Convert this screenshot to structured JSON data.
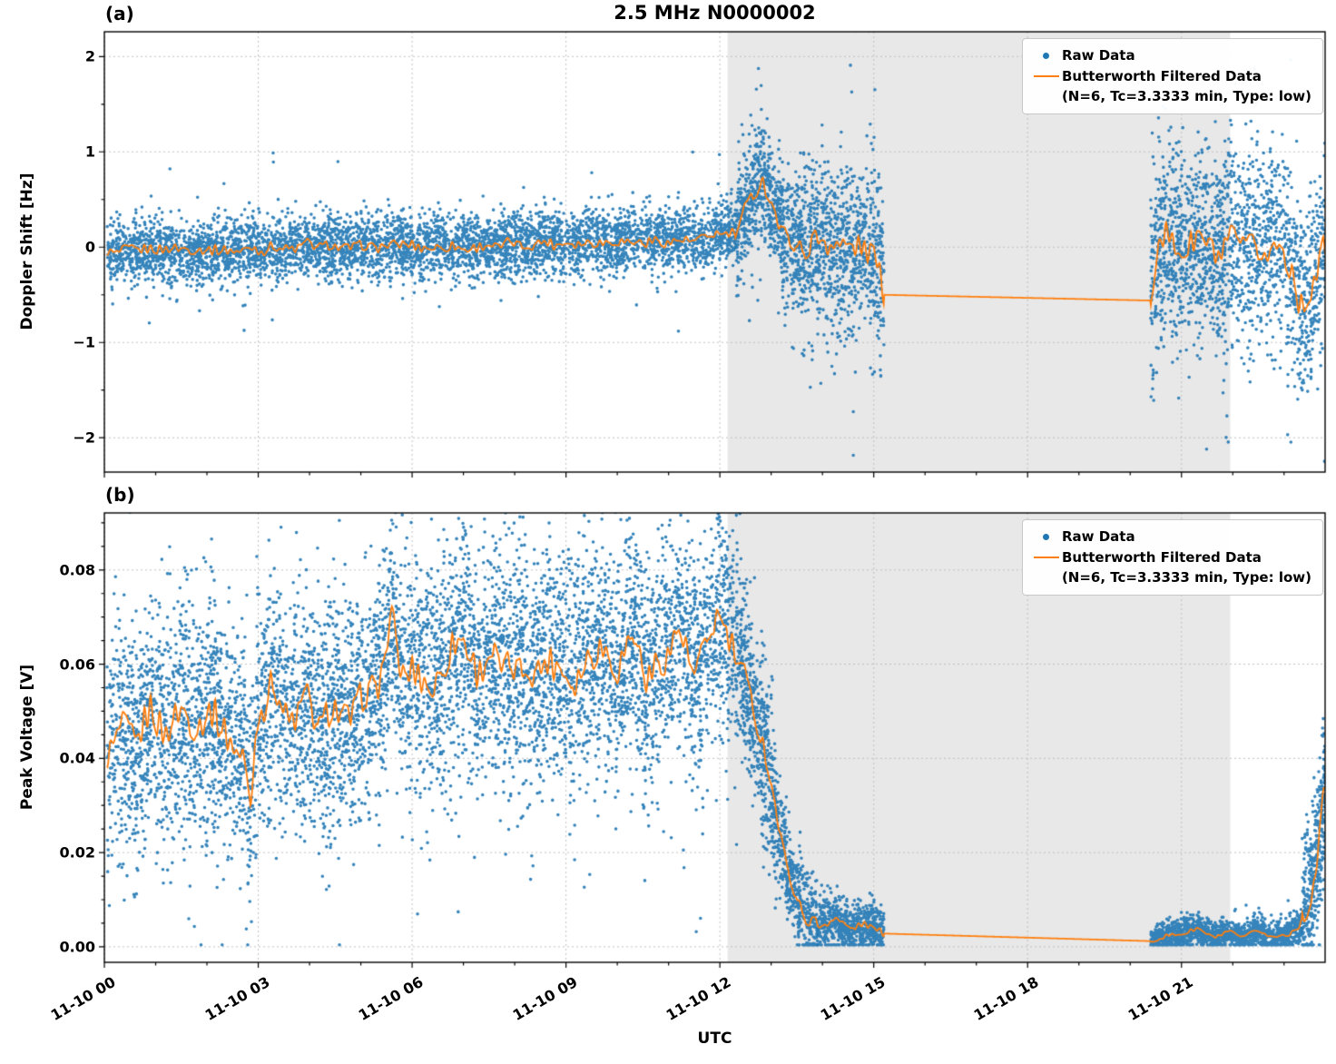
{
  "title": "2.5 MHz N0000002",
  "xlabel": "UTC",
  "colors": {
    "raw": "#1f77b4",
    "filtered": "#ff7f0e",
    "shade": "#e8e8e8",
    "grid": "#c0c0c0",
    "frame": "#000000"
  },
  "chart_data": [
    {
      "panel": "(a)",
      "type": "scatter",
      "ylabel": "Doppler Shift [Hz]",
      "xlim": [
        0,
        23.8
      ],
      "ylim": [
        -2.36,
        2.26
      ],
      "xticks": [
        0,
        3,
        6,
        9,
        12,
        15,
        18,
        21
      ],
      "yticks": [
        -2,
        -1,
        0,
        1,
        2
      ],
      "ytick_labels": [
        "−2",
        "−1",
        "0",
        "1",
        "2"
      ],
      "x_minor_step": 1,
      "y_minor_step": 0.5,
      "shade_span": [
        12.15,
        21.95
      ],
      "gap_span": [
        15.2,
        20.4
      ],
      "grid": true,
      "legend": {
        "raw_label": "Raw Data",
        "filtered_label": "Butterworth Filtered Data",
        "filtered_sublabel": "(N=6, Tc=3.3333 min, Type: low)"
      },
      "line_jitter_scale": 0.5,
      "filtered_anchors": [
        [
          0.05,
          -0.05
        ],
        [
          1,
          -0.03
        ],
        [
          2,
          -0.05
        ],
        [
          3,
          -0.02
        ],
        [
          4,
          0.02
        ],
        [
          5,
          0.0
        ],
        [
          6,
          0.03
        ],
        [
          7,
          0.0
        ],
        [
          8,
          0.03
        ],
        [
          9,
          0.05
        ],
        [
          10,
          0.05
        ],
        [
          11,
          0.07
        ],
        [
          11.8,
          0.1
        ],
        [
          12.3,
          0.18
        ],
        [
          12.6,
          0.5
        ],
        [
          12.8,
          0.72
        ],
        [
          13.0,
          0.45
        ],
        [
          13.2,
          0.15
        ],
        [
          13.5,
          0.0
        ],
        [
          14.0,
          0.05
        ],
        [
          14.5,
          -0.05
        ],
        [
          15.0,
          0.0
        ],
        [
          15.2,
          -0.5
        ],
        [
          20.4,
          -0.56
        ],
        [
          20.55,
          0.1
        ],
        [
          20.9,
          -0.05
        ],
        [
          21.3,
          0.08
        ],
        [
          21.7,
          -0.08
        ],
        [
          22.1,
          0.05
        ],
        [
          22.5,
          -0.05
        ],
        [
          22.9,
          0.02
        ],
        [
          23.15,
          -0.2
        ],
        [
          23.35,
          -0.65
        ],
        [
          23.55,
          -0.35
        ],
        [
          23.8,
          -0.05
        ]
      ],
      "raw_bands": [
        {
          "t0": 0.05,
          "t1": 12.3,
          "n": 5000,
          "sigma": 0.17,
          "outlier_p": 0.03,
          "outlier_mult": 2.2
        },
        {
          "t0": 12.3,
          "t1": 13.6,
          "n": 800,
          "sigma": 0.32,
          "outlier_p": 0.05,
          "outlier_mult": 2.0
        },
        {
          "t0": 13.6,
          "t1": 15.2,
          "n": 900,
          "sigma": 0.42,
          "outlier_p": 0.1,
          "outlier_mult": 2.0
        },
        {
          "t0": 20.4,
          "t1": 23.8,
          "n": 1800,
          "sigma": 0.5,
          "outlier_p": 0.08,
          "outlier_mult": 2.0
        }
      ]
    },
    {
      "panel": "(b)",
      "type": "scatter",
      "ylabel": "Peak Voltage [V]",
      "xlim": [
        0,
        23.8
      ],
      "ylim": [
        -0.0033,
        0.0921
      ],
      "xticks": [
        0,
        3,
        6,
        9,
        12,
        15,
        18,
        21
      ],
      "xtick_labels": [
        "11-10 00",
        "11-10 03",
        "11-10 06",
        "11-10 09",
        "11-10 12",
        "11-10 15",
        "11-10 18",
        "11-10 21"
      ],
      "yticks": [
        0,
        0.02,
        0.04,
        0.06,
        0.08
      ],
      "ytick_labels": [
        "0.00",
        "0.02",
        "0.04",
        "0.06",
        "0.08"
      ],
      "x_minor_step": 1,
      "y_minor_step": 0.005,
      "shade_span": [
        12.15,
        21.95
      ],
      "gap_span": [
        15.2,
        20.4
      ],
      "grid": true,
      "value_floor": 0.0004,
      "legend": {
        "raw_label": "Raw Data",
        "filtered_label": "Butterworth Filtered Data",
        "filtered_sublabel": "(N=6, Tc=3.3333 min, Type: low)"
      },
      "line_jitter_scale": 0.45,
      "filtered_anchors": [
        [
          0.05,
          0.04
        ],
        [
          0.3,
          0.047
        ],
        [
          0.6,
          0.042
        ],
        [
          0.9,
          0.05
        ],
        [
          1.2,
          0.044
        ],
        [
          1.5,
          0.049
        ],
        [
          1.8,
          0.045
        ],
        [
          2.1,
          0.049
        ],
        [
          2.4,
          0.044
        ],
        [
          2.7,
          0.041
        ],
        [
          2.85,
          0.029
        ],
        [
          3.0,
          0.051
        ],
        [
          3.3,
          0.055
        ],
        [
          3.6,
          0.049
        ],
        [
          3.9,
          0.052
        ],
        [
          4.2,
          0.047
        ],
        [
          4.5,
          0.051
        ],
        [
          4.8,
          0.049
        ],
        [
          5.1,
          0.053
        ],
        [
          5.4,
          0.058
        ],
        [
          5.6,
          0.07
        ],
        [
          5.8,
          0.057
        ],
        [
          6.1,
          0.06
        ],
        [
          6.4,
          0.056
        ],
        [
          6.7,
          0.062
        ],
        [
          7.0,
          0.067
        ],
        [
          7.3,
          0.058
        ],
        [
          7.6,
          0.063
        ],
        [
          7.9,
          0.057
        ],
        [
          8.2,
          0.061
        ],
        [
          8.5,
          0.058
        ],
        [
          8.8,
          0.062
        ],
        [
          9.1,
          0.056
        ],
        [
          9.4,
          0.061
        ],
        [
          9.7,
          0.064
        ],
        [
          10.0,
          0.058
        ],
        [
          10.3,
          0.067
        ],
        [
          10.6,
          0.057
        ],
        [
          10.9,
          0.062
        ],
        [
          11.2,
          0.068
        ],
        [
          11.5,
          0.059
        ],
        [
          11.8,
          0.065
        ],
        [
          12.0,
          0.07
        ],
        [
          12.2,
          0.066
        ],
        [
          12.45,
          0.059
        ],
        [
          12.7,
          0.049
        ],
        [
          12.9,
          0.04
        ],
        [
          13.1,
          0.028
        ],
        [
          13.3,
          0.017
        ],
        [
          13.5,
          0.01
        ],
        [
          13.7,
          0.006
        ],
        [
          13.95,
          0.004
        ],
        [
          14.25,
          0.006
        ],
        [
          14.55,
          0.0035
        ],
        [
          14.85,
          0.005
        ],
        [
          15.2,
          0.0028
        ],
        [
          20.4,
          0.0012
        ],
        [
          20.7,
          0.002
        ],
        [
          21.0,
          0.0028
        ],
        [
          21.3,
          0.0038
        ],
        [
          21.6,
          0.002
        ],
        [
          21.9,
          0.003
        ],
        [
          22.2,
          0.002
        ],
        [
          22.5,
          0.0035
        ],
        [
          22.8,
          0.002
        ],
        [
          23.1,
          0.0028
        ],
        [
          23.3,
          0.0045
        ],
        [
          23.45,
          0.008
        ],
        [
          23.6,
          0.015
        ],
        [
          23.7,
          0.024
        ],
        [
          23.8,
          0.034
        ]
      ],
      "raw_bands": [
        {
          "t0": 0.05,
          "t1": 12.4,
          "n": 6500,
          "sigma": 0.0125,
          "outlier_p": 0.05,
          "outlier_mult": 1.8
        },
        {
          "t0": 12.4,
          "t1": 13.1,
          "n": 500,
          "sigma": 0.009,
          "outlier_p": 0.03,
          "outlier_mult": 1.5
        },
        {
          "t0": 13.1,
          "t1": 13.9,
          "n": 450,
          "sigma": 0.005,
          "outlier_p": 0.03,
          "outlier_mult": 1.5
        },
        {
          "t0": 13.9,
          "t1": 15.2,
          "n": 700,
          "sigma": 0.0025,
          "outlier_p": 0.03,
          "outlier_mult": 1.8
        },
        {
          "t0": 20.4,
          "t1": 23.35,
          "n": 1500,
          "sigma": 0.0016,
          "outlier_p": 0.04,
          "outlier_mult": 2.0
        },
        {
          "t0": 23.35,
          "t1": 23.8,
          "n": 400,
          "sigma": 0.008,
          "outlier_p": 0.05,
          "outlier_mult": 1.5
        }
      ]
    }
  ]
}
